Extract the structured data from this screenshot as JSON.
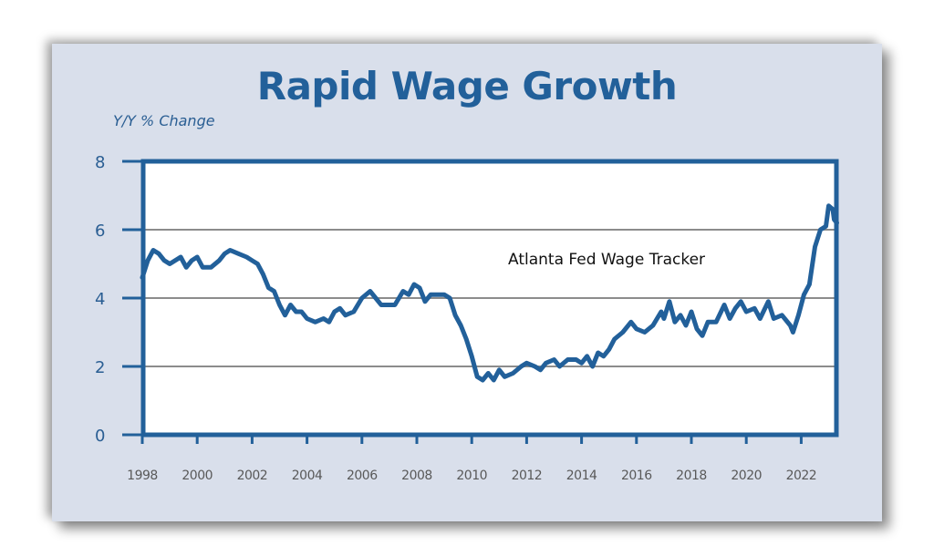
{
  "chart_data": {
    "type": "line",
    "title": "Rapid Wage Growth",
    "ylabel": "Y/Y % Change",
    "xlabel": "",
    "xlim": [
      1998,
      2023.3
    ],
    "ylim": [
      0,
      8
    ],
    "yticks": [
      0,
      2,
      4,
      6,
      8
    ],
    "xticks": [
      1998,
      2000,
      2002,
      2004,
      2006,
      2008,
      2010,
      2012,
      2014,
      2016,
      2018,
      2020,
      2022
    ],
    "grid": true,
    "annotation": "Atlanta Fed Wage Tracker",
    "colors": {
      "line": "#22609a",
      "axis": "#22609a",
      "grid": "#8c8c8c",
      "background": "#d9dfeb",
      "plot_background": "#ffffff"
    },
    "series": [
      {
        "name": "Atlanta Fed Wage Tracker",
        "x": [
          1998.0,
          1998.2,
          1998.4,
          1998.6,
          1998.8,
          1999.0,
          1999.2,
          1999.4,
          1999.6,
          1999.8,
          2000.0,
          2000.2,
          2000.5,
          2000.8,
          2001.0,
          2001.2,
          2001.5,
          2001.8,
          2002.0,
          2002.2,
          2002.4,
          2002.6,
          2002.8,
          2003.0,
          2003.2,
          2003.4,
          2003.6,
          2003.8,
          2004.0,
          2004.3,
          2004.6,
          2004.8,
          2005.0,
          2005.2,
          2005.4,
          2005.7,
          2006.0,
          2006.3,
          2006.5,
          2006.7,
          2007.0,
          2007.2,
          2007.5,
          2007.7,
          2007.9,
          2008.1,
          2008.3,
          2008.5,
          2009.0,
          2009.2,
          2009.4,
          2009.6,
          2009.8,
          2010.0,
          2010.2,
          2010.4,
          2010.6,
          2010.8,
          2011.0,
          2011.2,
          2011.5,
          2011.8,
          2012.0,
          2012.3,
          2012.5,
          2012.7,
          2013.0,
          2013.2,
          2013.5,
          2013.8,
          2014.0,
          2014.2,
          2014.4,
          2014.6,
          2014.8,
          2015.0,
          2015.2,
          2015.5,
          2015.8,
          2016.0,
          2016.3,
          2016.6,
          2016.9,
          2017.0,
          2017.2,
          2017.4,
          2017.6,
          2017.8,
          2018.0,
          2018.2,
          2018.4,
          2018.6,
          2018.9,
          2019.2,
          2019.4,
          2019.6,
          2019.8,
          2020.0,
          2020.3,
          2020.5,
          2020.8,
          2021.0,
          2021.3,
          2021.6,
          2021.7,
          2021.9,
          2022.1,
          2022.3,
          2022.5,
          2022.7,
          2022.9,
          2023.0,
          2023.15,
          2023.2,
          2023.3
        ],
        "y": [
          4.6,
          5.1,
          5.4,
          5.3,
          5.1,
          5.0,
          5.1,
          5.2,
          4.9,
          5.1,
          5.2,
          4.9,
          4.9,
          5.1,
          5.3,
          5.4,
          5.3,
          5.2,
          5.1,
          5.0,
          4.7,
          4.3,
          4.2,
          3.8,
          3.5,
          3.8,
          3.6,
          3.6,
          3.4,
          3.3,
          3.4,
          3.3,
          3.6,
          3.7,
          3.5,
          3.6,
          4.0,
          4.2,
          4.0,
          3.8,
          3.8,
          3.8,
          4.2,
          4.1,
          4.4,
          4.3,
          3.9,
          4.1,
          4.1,
          4.0,
          3.5,
          3.2,
          2.8,
          2.3,
          1.7,
          1.6,
          1.8,
          1.6,
          1.9,
          1.7,
          1.8,
          2.0,
          2.1,
          2.0,
          1.9,
          2.1,
          2.2,
          2.0,
          2.2,
          2.2,
          2.1,
          2.3,
          2.0,
          2.4,
          2.3,
          2.5,
          2.8,
          3.0,
          3.3,
          3.1,
          3.0,
          3.2,
          3.6,
          3.4,
          3.9,
          3.3,
          3.5,
          3.2,
          3.6,
          3.1,
          2.9,
          3.3,
          3.3,
          3.8,
          3.4,
          3.7,
          3.9,
          3.6,
          3.7,
          3.4,
          3.9,
          3.4,
          3.5,
          3.2,
          3.0,
          3.5,
          4.1,
          4.4,
          5.5,
          6.0,
          6.1,
          6.7,
          6.6,
          6.3,
          6.2
        ]
      }
    ]
  }
}
